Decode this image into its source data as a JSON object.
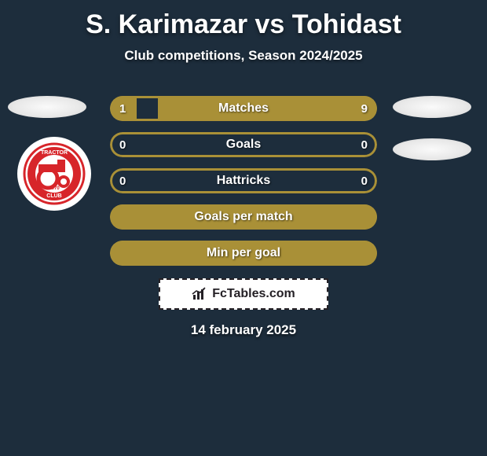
{
  "title": "S. Karimazar vs Tohidast",
  "subtitle": "Club competitions, Season 2024/2025",
  "date": "14 february 2025",
  "watermark": {
    "text": "FcTables.com"
  },
  "colors": {
    "background": "#1d2d3c",
    "bar_border": "#a99037",
    "bar_fill": "#a99037",
    "placeholder": "#eeeeee",
    "text": "#ffffff",
    "logo_halo": "#ffffff",
    "logo_red": "#d7252a",
    "logo_border": "#d7252a"
  },
  "bars": [
    {
      "label": "Matches",
      "left_value": 1,
      "right_value": 9,
      "left_pct": 10,
      "right_pct": 82,
      "show_values": true
    },
    {
      "label": "Goals",
      "left_value": 0,
      "right_value": 0,
      "left_pct": 0,
      "right_pct": 0,
      "show_values": true
    },
    {
      "label": "Hattricks",
      "left_value": 0,
      "right_value": 0,
      "left_pct": 0,
      "right_pct": 0,
      "show_values": true
    },
    {
      "label": "Goals per match",
      "left_value": null,
      "right_value": null,
      "left_pct": 100,
      "right_pct": 0,
      "show_values": false
    },
    {
      "label": "Min per goal",
      "left_value": null,
      "right_value": null,
      "left_pct": 100,
      "right_pct": 0,
      "show_values": false
    }
  ],
  "team_badge": {
    "top_text": "TRACTOR",
    "bottom_text": "CLUB",
    "year": "1970"
  }
}
